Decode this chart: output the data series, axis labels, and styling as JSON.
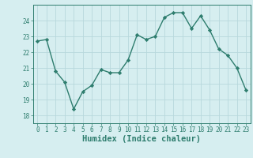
{
  "xlabel": "Humidex (Indice chaleur)",
  "x": [
    0,
    1,
    2,
    3,
    4,
    5,
    6,
    7,
    8,
    9,
    10,
    11,
    12,
    13,
    14,
    15,
    16,
    17,
    18,
    19,
    20,
    21,
    22,
    23
  ],
  "y": [
    22.7,
    22.8,
    20.8,
    20.1,
    18.4,
    19.5,
    19.9,
    20.9,
    20.7,
    20.7,
    21.5,
    23.1,
    22.8,
    23.0,
    24.2,
    24.5,
    24.5,
    23.5,
    24.3,
    23.4,
    22.2,
    21.8,
    21.0,
    19.6
  ],
  "line_color": "#2e7d6e",
  "marker": "D",
  "marker_size": 2.2,
  "line_width": 1.0,
  "bg_color": "#d6eef0",
  "grid_color": "#b8d8dc",
  "tick_color": "#2e7d6e",
  "label_color": "#2e7d6e",
  "ylim": [
    17.5,
    25.0
  ],
  "yticks": [
    18,
    19,
    20,
    21,
    22,
    23,
    24
  ],
  "xlim": [
    -0.5,
    23.5
  ],
  "xlabel_fontsize": 7.5,
  "tick_fontsize": 5.5
}
